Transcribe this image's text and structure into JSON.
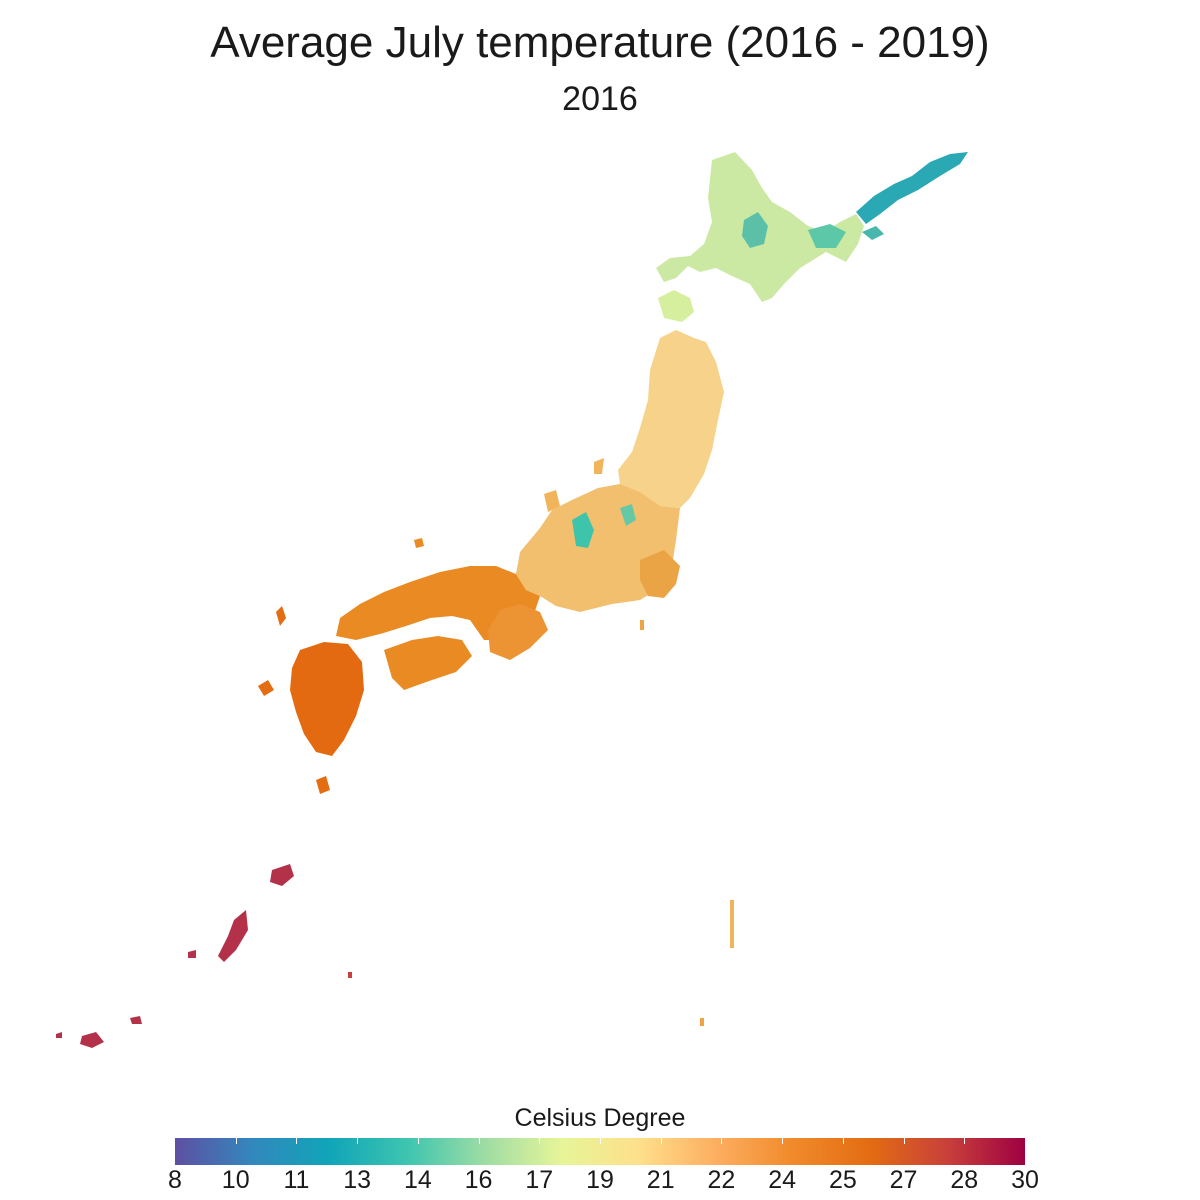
{
  "title": "Average July temperature (2016 - 2019)",
  "subtitle": "2016",
  "legend": {
    "title": "Celsius Degree",
    "ticks": [
      "8",
      "10",
      "11",
      "13",
      "14",
      "16",
      "17",
      "19",
      "21",
      "22",
      "24",
      "25",
      "27",
      "28",
      "30"
    ],
    "min": 8,
    "max": 30,
    "palette": [
      "#5e4fa2",
      "#3288bd",
      "#10a5b8",
      "#3dc5b0",
      "#9ddca4",
      "#e6f598",
      "#fee08b",
      "#fdae61",
      "#f08a2a",
      "#e36c12",
      "#c8403a",
      "#9e0142"
    ]
  },
  "regions": [
    {
      "name": "Hokkaido",
      "color": "#c4e8a0"
    },
    {
      "name": "Hokkaido central mountains",
      "color": "#5ec2aa"
    },
    {
      "name": "Eastern Hokkaido / Kuril islands",
      "color": "#2aa8b4"
    },
    {
      "name": "Tohoku",
      "color": "#f5cf86"
    },
    {
      "name": "Central Honshu (Japan Alps)",
      "color": "#f2be6c"
    },
    {
      "name": "Kanto",
      "color": "#eda445"
    },
    {
      "name": "Western Honshu",
      "color": "#ea8a22"
    },
    {
      "name": "Shikoku",
      "color": "#ea8a22"
    },
    {
      "name": "Kyushu",
      "color": "#e46a0e"
    },
    {
      "name": "Okinawa / Ryukyu",
      "color": "#b3324a"
    }
  ]
}
